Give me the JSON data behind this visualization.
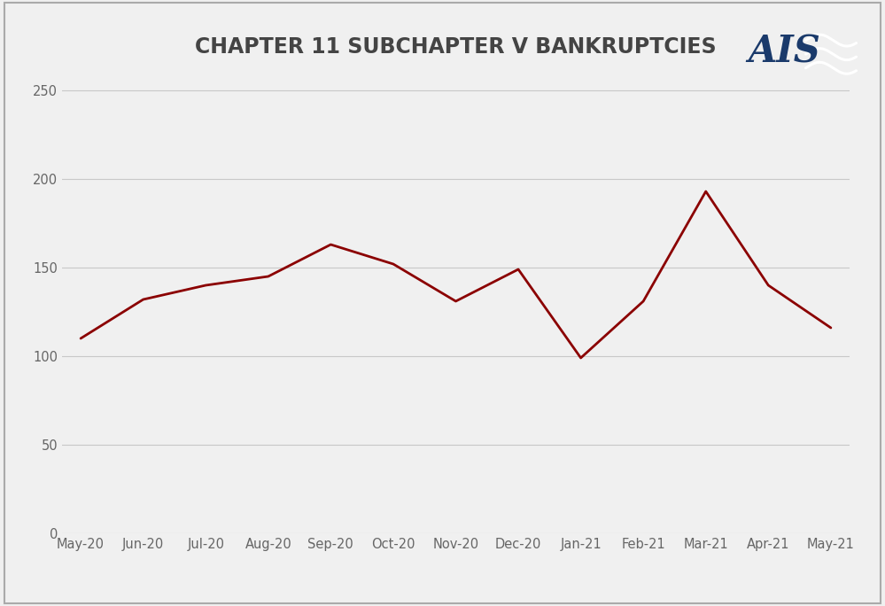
{
  "title": "CHAPTER 11 SUBCHAPTER V BANKRUPTCIES",
  "categories": [
    "May-20",
    "Jun-20",
    "Jul-20",
    "Aug-20",
    "Sep-20",
    "Oct-20",
    "Nov-20",
    "Dec-20",
    "Jan-21",
    "Feb-21",
    "Mar-21",
    "Apr-21",
    "May-21"
  ],
  "values": [
    110,
    132,
    140,
    145,
    163,
    152,
    131,
    149,
    99,
    131,
    193,
    140,
    116
  ],
  "line_color": "#8B0000",
  "line_width": 2.0,
  "ylim": [
    0,
    260
  ],
  "yticks": [
    0,
    50,
    100,
    150,
    200,
    250
  ],
  "background_color": "#f0f0f0",
  "plot_bg_color": "#f0f0f0",
  "grid_color": "#c8c8c8",
  "title_fontsize": 17,
  "tick_fontsize": 10.5,
  "title_color": "#444444",
  "border_color": "#aaaaaa",
  "ais_text_color": "#1a3a6b",
  "ais_box_color": "#cc1111"
}
